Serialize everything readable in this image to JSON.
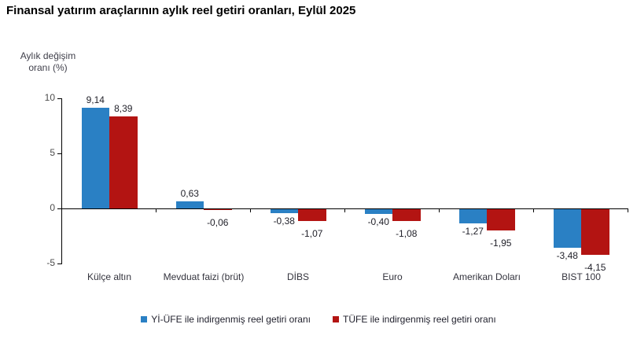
{
  "title": "Finansal yatırım araçlarının aylık reel getiri oranları, Eylül 2025",
  "chart_data": {
    "type": "bar",
    "title": "Finansal yatırım araçlarının aylık reel getiri oranları, Eylül 2025",
    "ylabel": "Aylık değişim\noranı (%)",
    "xlabel": "",
    "categories": [
      "Külçe altın",
      "Mevduat faizi (brüt)",
      "DİBS",
      "Euro",
      "Amerikan Doları",
      "BIST 100"
    ],
    "series": [
      {
        "name": "Yİ-ÜFE ile indirgenmiş reel getiri oranı",
        "color": "#2a80c4",
        "values": [
          9.14,
          0.63,
          -0.38,
          -0.4,
          -1.27,
          -3.48
        ],
        "labels": [
          "9,14",
          "0,63",
          "-0,38",
          "-0,40",
          "-1,27",
          "-3,48"
        ]
      },
      {
        "name": "TÜFE ile indirgenmiş reel getiri oranı",
        "color": "#b31412",
        "values": [
          8.39,
          -0.06,
          -1.07,
          -1.08,
          -1.95,
          -4.15
        ],
        "labels": [
          "8,39",
          "-0,06",
          "-1,07",
          "-1,08",
          "-1,95",
          "-4,15"
        ]
      }
    ],
    "yticks": [
      10,
      5,
      0,
      -5
    ],
    "ylim": [
      -5,
      10
    ],
    "grid": false,
    "legend_position": "bottom"
  }
}
